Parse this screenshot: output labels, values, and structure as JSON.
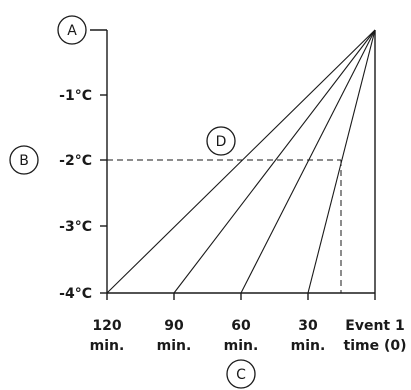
{
  "markers": {
    "a": "A",
    "b": "B",
    "c": "C",
    "d": "D"
  },
  "y_ticks": [
    "-1°C",
    "-2°C",
    "-3°C",
    "-4°C"
  ],
  "x_ticks": [
    {
      "line1": "120",
      "line2": "min."
    },
    {
      "line1": "90",
      "line2": "min."
    },
    {
      "line1": "60",
      "line2": "min."
    },
    {
      "line1": "30",
      "line2": "min."
    },
    {
      "line1": "Event 1",
      "line2": "time (0)"
    }
  ]
}
